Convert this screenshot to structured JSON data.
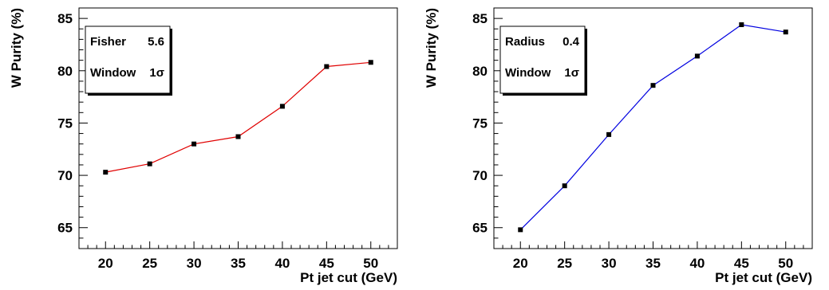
{
  "chart_data": [
    {
      "type": "line",
      "ylabel": "W Purity (%)",
      "xlabel": "Pt jet cut (GeV)",
      "xlim": [
        17,
        53
      ],
      "ylim": [
        63,
        86
      ],
      "xticks": [
        20,
        25,
        30,
        35,
        40,
        45,
        50
      ],
      "yticks": [
        65,
        70,
        75,
        80,
        85
      ],
      "grid": false,
      "legend_position": "top-left",
      "legend": [
        {
          "label": "Fisher",
          "value": "5.6"
        },
        {
          "label": "Window",
          "value": "1σ"
        }
      ],
      "series": [
        {
          "color": "#e00000",
          "marker_color": "#000000",
          "x": [
            20,
            25,
            30,
            35,
            40,
            45,
            50
          ],
          "y": [
            70.3,
            71.1,
            73.0,
            73.7,
            76.6,
            80.4,
            80.8
          ]
        }
      ]
    },
    {
      "type": "line",
      "ylabel": "W Purity (%)",
      "xlabel": "Pt jet cut (GeV)",
      "xlim": [
        17,
        53
      ],
      "ylim": [
        63,
        86
      ],
      "xticks": [
        20,
        25,
        30,
        35,
        40,
        45,
        50
      ],
      "yticks": [
        65,
        70,
        75,
        80,
        85
      ],
      "grid": false,
      "legend_position": "top-left",
      "legend": [
        {
          "label": "Radius",
          "value": "0.4"
        },
        {
          "label": "Window",
          "value": "1σ"
        }
      ],
      "series": [
        {
          "color": "#0000e0",
          "marker_color": "#000000",
          "x": [
            20,
            25,
            30,
            35,
            40,
            45,
            50
          ],
          "y": [
            64.8,
            69.0,
            73.9,
            78.6,
            81.4,
            84.4,
            83.7
          ]
        }
      ]
    }
  ]
}
